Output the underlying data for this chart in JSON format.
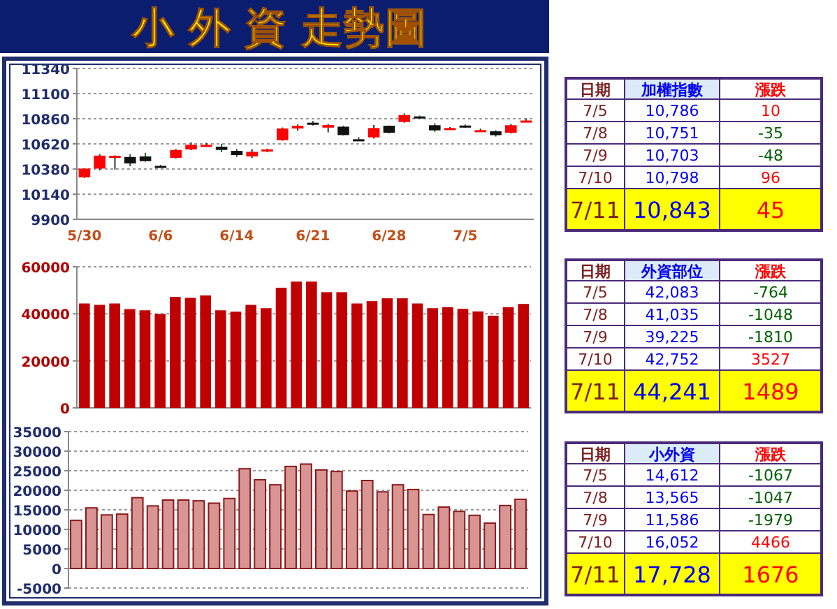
{
  "chart_data": [
    {
      "type": "candlestick",
      "title": "小 外 資 走勢圖",
      "grid": "y",
      "categories": [
        "5/30",
        null,
        null,
        null,
        null,
        "6/6",
        null,
        null,
        null,
        null,
        "6/14",
        null,
        null,
        null,
        null,
        "6/21",
        null,
        null,
        null,
        null,
        "6/28",
        null,
        null,
        null,
        null,
        "7/5",
        null,
        null,
        null,
        null
      ],
      "ohlc": [
        [
          10300,
          10388,
          10295,
          10384
        ],
        [
          10384,
          10522,
          10367,
          10508
        ],
        [
          10504,
          10510,
          10375,
          10506
        ],
        [
          10495,
          10522,
          10407,
          10433
        ],
        [
          10500,
          10535,
          10450,
          10455
        ],
        [
          10410,
          10420,
          10395,
          10405
        ],
        [
          10487,
          10570,
          10480,
          10562
        ],
        [
          10567,
          10635,
          10560,
          10611
        ],
        [
          10605,
          10630,
          10590,
          10611
        ],
        [
          10593,
          10620,
          10540,
          10562
        ],
        [
          10553,
          10571,
          10495,
          10513
        ],
        [
          10500,
          10570,
          10485,
          10544
        ],
        [
          10553,
          10575,
          10540,
          10567
        ],
        [
          10655,
          10776,
          10650,
          10767
        ],
        [
          10767,
          10805,
          10745,
          10793
        ],
        [
          10822,
          10840,
          10795,
          10815
        ],
        [
          10775,
          10810,
          10730,
          10800
        ],
        [
          10784,
          10793,
          10700,
          10704
        ],
        [
          10664,
          10685,
          10655,
          10660
        ],
        [
          10682,
          10800,
          10670,
          10771
        ],
        [
          10793,
          10795,
          10720,
          10726
        ],
        [
          10829,
          10910,
          10822,
          10895
        ],
        [
          10882,
          10890,
          10860,
          10875
        ],
        [
          10798,
          10815,
          10735,
          10749
        ],
        [
          10767,
          10780,
          10760,
          10771
        ],
        [
          10795,
          10805,
          10775,
          10786
        ],
        [
          10745,
          10765,
          10740,
          10751
        ],
        [
          10740,
          10750,
          10690,
          10703
        ],
        [
          10726,
          10810,
          10720,
          10798
        ],
        [
          10836,
          10860,
          10825,
          10843
        ]
      ],
      "ylim": [
        9900,
        11340
      ],
      "yticks": [
        9900,
        10140,
        10380,
        10620,
        10860,
        11100,
        11340
      ]
    },
    {
      "type": "bar",
      "color": "#c00000",
      "grid": "y",
      "tick_labels": "y",
      "values": [
        44400,
        43800,
        44400,
        42000,
        41500,
        39900,
        47200,
        46800,
        47800,
        41500,
        40900,
        43800,
        42400,
        51100,
        53700,
        53700,
        49200,
        49200,
        44400,
        45400,
        46600,
        46600,
        44400,
        42400,
        42800,
        42100,
        41000,
        39200,
        42800,
        44200
      ],
      "ylim": [
        0,
        60000
      ],
      "yticks": [
        0,
        20000,
        40000,
        60000
      ]
    },
    {
      "type": "bar",
      "color": "#d99594",
      "grid": "y",
      "tick_labels": "y",
      "values": [
        12300,
        15500,
        13700,
        13900,
        18100,
        16000,
        17500,
        17500,
        17300,
        16700,
        17900,
        25500,
        22700,
        21400,
        26100,
        26700,
        25200,
        24800,
        19800,
        22500,
        19600,
        21400,
        20200,
        13800,
        15700,
        14600,
        13600,
        11600,
        16100,
        17700
      ],
      "ylim": [
        -5000,
        35000
      ],
      "yticks": [
        -5000,
        0,
        5000,
        10000,
        15000,
        20000,
        25000,
        30000,
        35000
      ]
    },
    {
      "type": "other",
      "ylabel": "日期",
      "categories": [
        "加權指數",
        "漲跌"
      ],
      "y_categories": [
        "7/5",
        "7/8",
        "7/9",
        "7/10",
        "7/11"
      ],
      "cell_labels": [
        [
          "10,786",
          "10"
        ],
        [
          "10,751",
          "-35"
        ],
        [
          "10,703",
          "-48"
        ],
        [
          "10,798",
          "96"
        ],
        [
          "10,843",
          "45"
        ]
      ]
    },
    {
      "type": "other",
      "ylabel": "日期",
      "categories": [
        "外資部位",
        "漲跌"
      ],
      "y_categories": [
        "7/5",
        "7/8",
        "7/9",
        "7/10",
        "7/11"
      ],
      "cell_labels": [
        [
          "42,083",
          "-764"
        ],
        [
          "41,035",
          "-1048"
        ],
        [
          "39,225",
          "-1810"
        ],
        [
          "42,752",
          "3527"
        ],
        [
          "44,241",
          "1489"
        ]
      ]
    },
    {
      "type": "other",
      "ylabel": "日期",
      "categories": [
        "小外資",
        "漲跌"
      ],
      "y_categories": [
        "7/5",
        "7/8",
        "7/9",
        "7/10",
        "7/11"
      ],
      "cell_labels": [
        [
          "14,612",
          "-1067"
        ],
        [
          "13,565",
          "-1047"
        ],
        [
          "11,586",
          "-1979"
        ],
        [
          "16,052",
          "4466"
        ],
        [
          "17,728",
          "1676"
        ]
      ]
    }
  ]
}
